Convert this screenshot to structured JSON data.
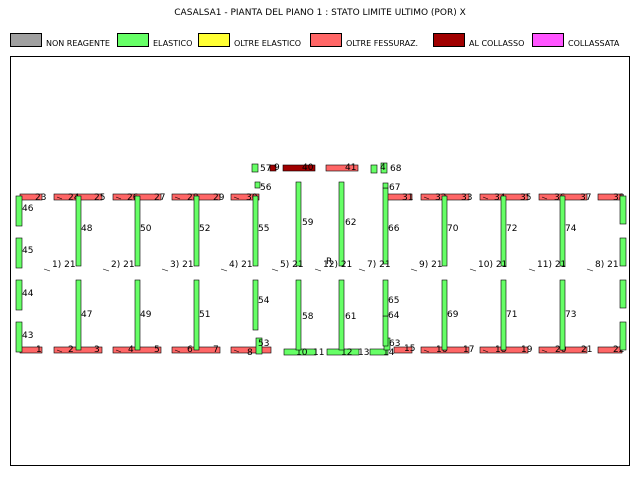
{
  "title": "CASALSA1 - PIANTA DEL PIANO 1 : STATO LIMITE ULTIMO (POR)  X",
  "colors": {
    "non_reagente": "#A0A0A0",
    "elastico": "#66FF66",
    "oltre_elastico": "#FFFF33",
    "oltre_fessuraz": "#FF6666",
    "al_collasso": "#A00000",
    "collassata": "#FF55FF"
  },
  "legend": [
    {
      "label": "NON REAGENTE",
      "color": "#A0A0A0"
    },
    {
      "label": "ELASTICO",
      "color": "#66FF66"
    },
    {
      "label": "OLTRE ELASTICO",
      "color": "#FFFF33"
    },
    {
      "label": "OLTRE FESSURAZ.",
      "color": "#FF6666"
    },
    {
      "label": "AL COLLASSO",
      "color": "#A00000"
    },
    {
      "label": "COLLASSATA",
      "color": "#FF55FF"
    }
  ],
  "walls": [
    {
      "id": "1",
      "state": "oltre_fessuraz"
    },
    {
      "id": "2",
      "state": "oltre_fessuraz"
    },
    {
      "id": "3",
      "state": "oltre_fessuraz"
    },
    {
      "id": "4",
      "state": "oltre_fessuraz"
    },
    {
      "id": "5",
      "state": "oltre_fessuraz"
    },
    {
      "id": "6",
      "state": "oltre_fessuraz"
    },
    {
      "id": "7",
      "state": "oltre_fessuraz"
    },
    {
      "id": "8",
      "state": "oltre_fessuraz"
    },
    {
      "id": "9",
      "state": "al_collasso"
    },
    {
      "id": "10",
      "state": "elastico"
    },
    {
      "id": "11",
      "state": "elastico"
    },
    {
      "id": "12",
      "state": "elastico"
    },
    {
      "id": "13",
      "state": "elastico"
    },
    {
      "id": "14",
      "state": "elastico"
    },
    {
      "id": "15",
      "state": "oltre_fessuraz"
    },
    {
      "id": "16",
      "state": "oltre_fessuraz"
    },
    {
      "id": "17",
      "state": "oltre_fessuraz"
    },
    {
      "id": "18",
      "state": "oltre_fessuraz"
    },
    {
      "id": "19",
      "state": "oltre_fessuraz"
    },
    {
      "id": "20",
      "state": "oltre_fessuraz"
    },
    {
      "id": "21",
      "state": "oltre_fessuraz"
    },
    {
      "id": "22",
      "state": "oltre_fessuraz"
    },
    {
      "id": "23",
      "state": "oltre_fessuraz"
    },
    {
      "id": "24",
      "state": "oltre_fessuraz"
    },
    {
      "id": "25",
      "state": "oltre_fessuraz"
    },
    {
      "id": "26",
      "state": "oltre_fessuraz"
    },
    {
      "id": "27",
      "state": "oltre_fessuraz"
    },
    {
      "id": "28",
      "state": "oltre_fessuraz"
    },
    {
      "id": "29",
      "state": "oltre_fessuraz"
    },
    {
      "id": "30",
      "state": "oltre_fessuraz"
    },
    {
      "id": "31",
      "state": "oltre_fessuraz"
    },
    {
      "id": "32",
      "state": "oltre_fessuraz"
    },
    {
      "id": "33",
      "state": "oltre_fessuraz"
    },
    {
      "id": "34",
      "state": "oltre_fessuraz"
    },
    {
      "id": "35",
      "state": "oltre_fessuraz"
    },
    {
      "id": "36",
      "state": "oltre_fessuraz"
    },
    {
      "id": "37",
      "state": "oltre_fessuraz"
    },
    {
      "id": "38",
      "state": "oltre_fessuraz"
    },
    {
      "id": "40",
      "state": "al_collasso"
    },
    {
      "id": "41",
      "state": "oltre_fessuraz"
    },
    {
      "id": "43",
      "state": "elastico"
    },
    {
      "id": "44",
      "state": "elastico"
    },
    {
      "id": "45",
      "state": "elastico"
    },
    {
      "id": "46",
      "state": "elastico"
    },
    {
      "id": "47",
      "state": "elastico"
    },
    {
      "id": "48",
      "state": "elastico"
    },
    {
      "id": "49",
      "state": "elastico"
    },
    {
      "id": "50",
      "state": "elastico"
    },
    {
      "id": "51",
      "state": "elastico"
    },
    {
      "id": "52",
      "state": "elastico"
    },
    {
      "id": "53",
      "state": "elastico"
    },
    {
      "id": "54",
      "state": "elastico"
    },
    {
      "id": "55",
      "state": "elastico"
    },
    {
      "id": "56",
      "state": "elastico"
    },
    {
      "id": "57",
      "state": "elastico"
    },
    {
      "id": "58",
      "state": "elastico"
    },
    {
      "id": "59",
      "state": "elastico"
    },
    {
      "id": "61",
      "state": "elastico"
    },
    {
      "id": "62",
      "state": "elastico"
    },
    {
      "id": "63",
      "state": "elastico"
    },
    {
      "id": "64",
      "state": "elastico"
    },
    {
      "id": "65",
      "state": "elastico"
    },
    {
      "id": "66",
      "state": "elastico"
    },
    {
      "id": "67",
      "state": "elastico"
    },
    {
      "id": "68",
      "state": "elastico"
    },
    {
      "id": "69",
      "state": "elastico"
    },
    {
      "id": "70",
      "state": "elastico"
    },
    {
      "id": "71",
      "state": "elastico"
    },
    {
      "id": "72",
      "state": "elastico"
    },
    {
      "id": "73",
      "state": "elastico"
    },
    {
      "id": "74",
      "state": "elastico"
    },
    {
      "id": "4b",
      "label": "4",
      "state": "elastico"
    }
  ],
  "joint_labels": [
    "1) 21",
    "2) 21",
    "3) 21",
    "4) 21",
    "5) 21",
    "12) 21",
    "7) 21",
    "9) 21",
    "10) 21",
    "11) 21",
    "8) 21"
  ],
  "center_label": "R"
}
